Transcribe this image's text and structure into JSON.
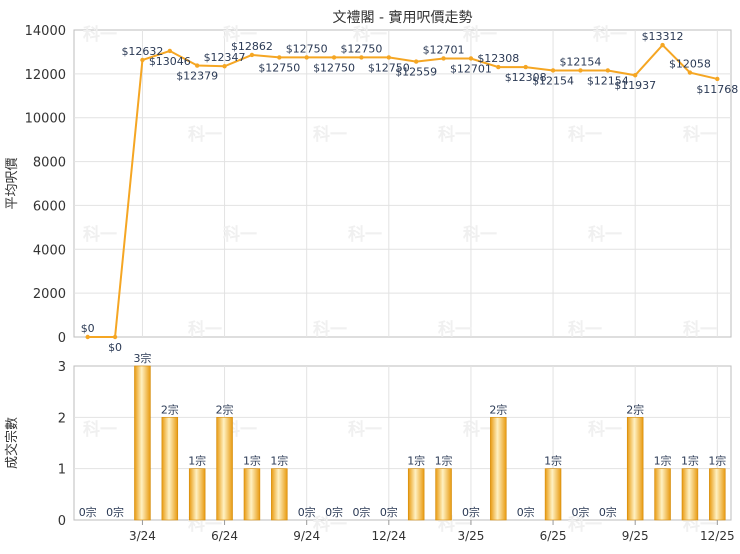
{
  "chart_data": [
    {
      "type": "line",
      "title": "文禮閣 - 實用呎價走勢",
      "ylabel": "平均呎價",
      "ylim": [
        0,
        14000
      ],
      "yticks": [
        0,
        2000,
        4000,
        6000,
        8000,
        10000,
        12000,
        14000
      ],
      "color": "#f5a623",
      "grid": true,
      "values": [
        0,
        0,
        12632,
        13046,
        12379,
        12347,
        12862,
        12750,
        12750,
        12750,
        12750,
        12750,
        12559,
        12701,
        12701,
        12308,
        12308,
        12154,
        12154,
        12154,
        11937,
        13312,
        12058,
        11768
      ],
      "labels": [
        "$0",
        "$0",
        "$12632",
        "$13046",
        "$12379",
        "$12347",
        "$12862",
        "$12750",
        "$12750",
        "$12750",
        "$12750",
        "$12750",
        "$12559",
        "$12701",
        "$12701",
        "$12308",
        "$12308",
        "$12154",
        "$12154",
        "$12154",
        "$11937",
        "$13312",
        "$12058",
        "$11768"
      ]
    },
    {
      "type": "bar",
      "ylabel": "成交宗數",
      "ylim": [
        0,
        3
      ],
      "yticks": [
        0,
        1,
        2,
        3
      ],
      "color": "#f5a623",
      "grid": true,
      "categories": [
        "3/24",
        "6/24",
        "9/24",
        "12/24",
        "3/25",
        "6/25",
        "9/25",
        "12/25"
      ],
      "values": [
        0,
        0,
        3,
        2,
        1,
        2,
        1,
        1,
        0,
        0,
        0,
        0,
        1,
        1,
        0,
        2,
        0,
        1,
        0,
        0,
        2,
        1,
        1,
        1
      ],
      "labels": [
        "0宗",
        "0宗",
        "3宗",
        "2宗",
        "1宗",
        "2宗",
        "1宗",
        "1宗",
        "0宗",
        "0宗",
        "0宗",
        "0宗",
        "1宗",
        "1宗",
        "0宗",
        "2宗",
        "0宗",
        "1宗",
        "0宗",
        "0宗",
        "2宗",
        "1宗",
        "1宗",
        "1宗"
      ]
    }
  ],
  "watermark": "科一"
}
